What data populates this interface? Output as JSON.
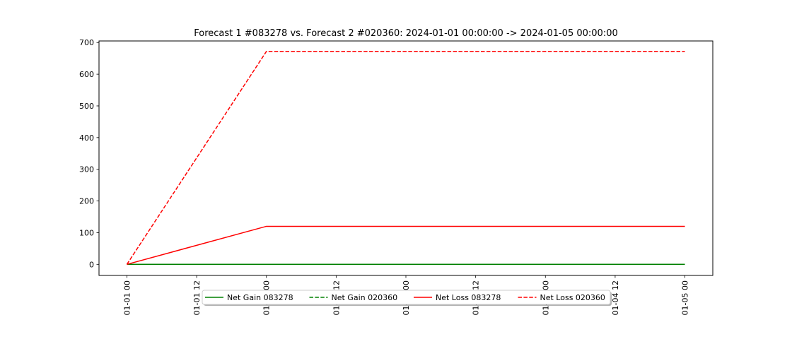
{
  "chart_data": {
    "type": "line",
    "title": "Forecast 1 #083278 vs. Forecast 2 #020360: 2024-01-01 00:00:00 -> 2024-01-05 00:00:00",
    "xlabel": "",
    "ylabel": "",
    "x": [
      "2024-01-01 00:00",
      "2024-01-02 00:00",
      "2024-01-03 00:00",
      "2024-01-04 00:00",
      "2024-01-05 00:00"
    ],
    "xlim": [
      "2023-12-31 19:12",
      "2024-01-05 04:48"
    ],
    "ylim": [
      -35,
      705
    ],
    "xticks": [
      "01-01 00",
      "01-01 12",
      "01-02 00",
      "01-02 12",
      "01-03 00",
      "01-03 12",
      "01-04 00",
      "01-04 12",
      "01-05 00"
    ],
    "yticks": [
      0,
      100,
      200,
      300,
      400,
      500,
      600,
      700
    ],
    "grid": false,
    "legend": {
      "placement": "bottom-center",
      "columns": 4
    },
    "series": [
      {
        "name": "Net Gain 083278",
        "color": "#008000",
        "dash": "solid",
        "values": [
          0,
          0,
          0,
          0,
          0
        ]
      },
      {
        "name": "Net Gain 020360",
        "color": "#008000",
        "dash": "dashed",
        "values": [
          0,
          0,
          0,
          0,
          0
        ]
      },
      {
        "name": "Net Loss 083278",
        "color": "#ff0000",
        "dash": "solid",
        "values": [
          0,
          120,
          120,
          120,
          120
        ]
      },
      {
        "name": "Net Loss 020360",
        "color": "#ff0000",
        "dash": "dashed",
        "values": [
          0,
          672,
          672,
          672,
          672
        ]
      }
    ]
  }
}
